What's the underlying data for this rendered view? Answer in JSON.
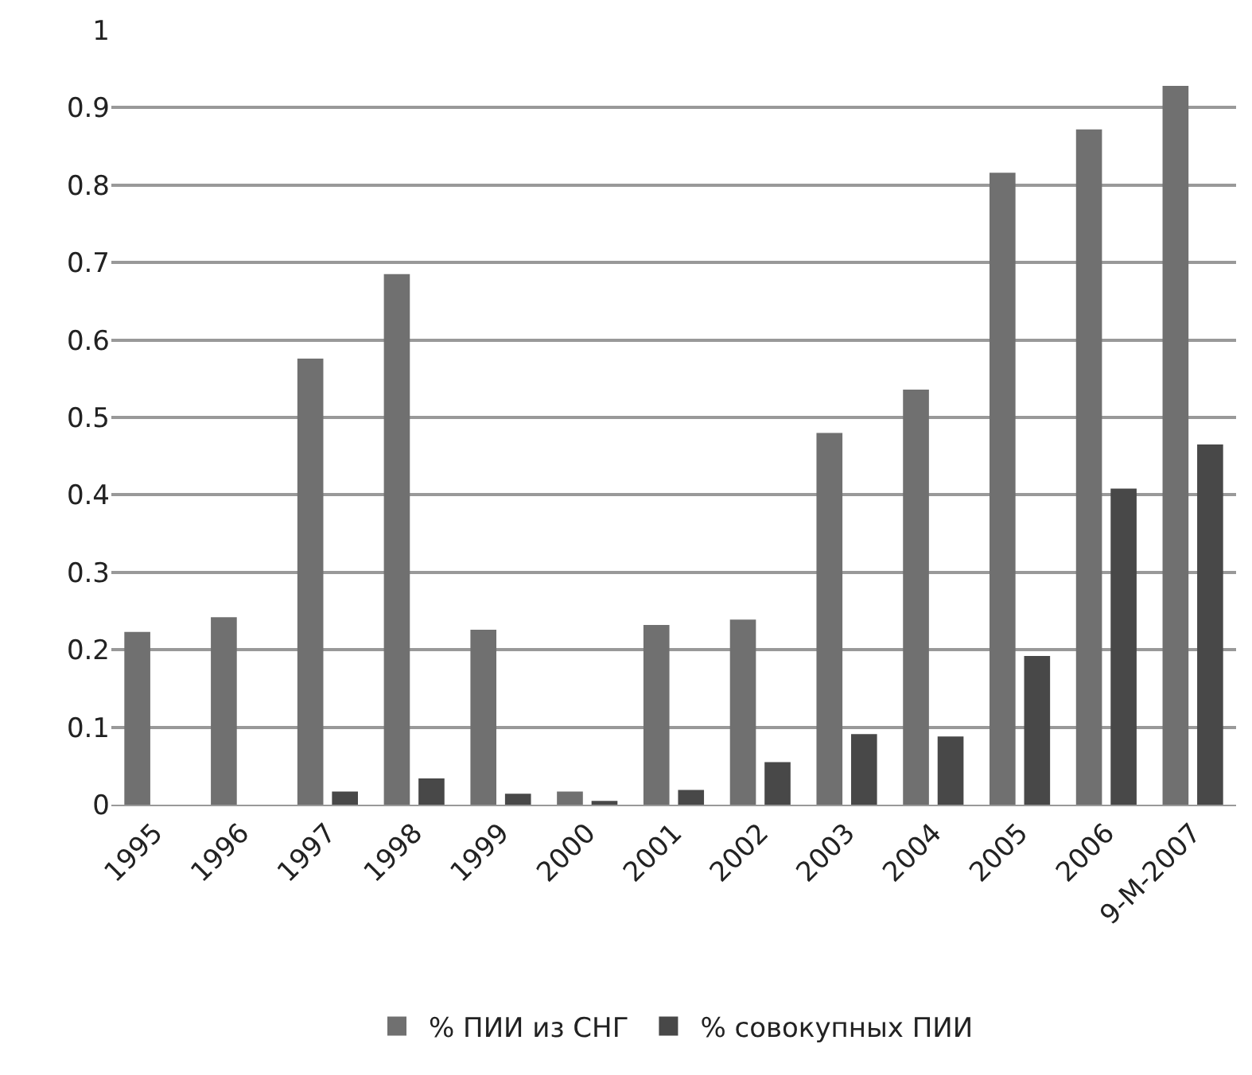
{
  "chart_data": {
    "type": "bar",
    "categories": [
      "1995",
      "1996",
      "1997",
      "1998",
      "1999",
      "2000",
      "2001",
      "2002",
      "2003",
      "2004",
      "2005",
      "2006",
      "9-M-2007"
    ],
    "series": [
      {
        "name": "% ПИИ из СНГ",
        "color": "#707070",
        "values": [
          0.223,
          0.242,
          0.576,
          0.685,
          0.226,
          0.017,
          0.232,
          0.239,
          0.48,
          0.536,
          0.816,
          0.872,
          0.928
        ]
      },
      {
        "name": "% совокупных ПИИ",
        "color": "#484848",
        "values": [
          0,
          0,
          0.017,
          0.034,
          0.014,
          0.005,
          0.019,
          0.055,
          0.091,
          0.088,
          0.192,
          0.408,
          0.465
        ]
      }
    ],
    "ylim": [
      0,
      1
    ],
    "yticks": [
      0,
      0.1,
      0.2,
      0.3,
      0.4,
      0.5,
      0.6,
      0.7,
      0.8,
      0.9,
      1
    ],
    "grid": "y",
    "legend": "bottom"
  }
}
